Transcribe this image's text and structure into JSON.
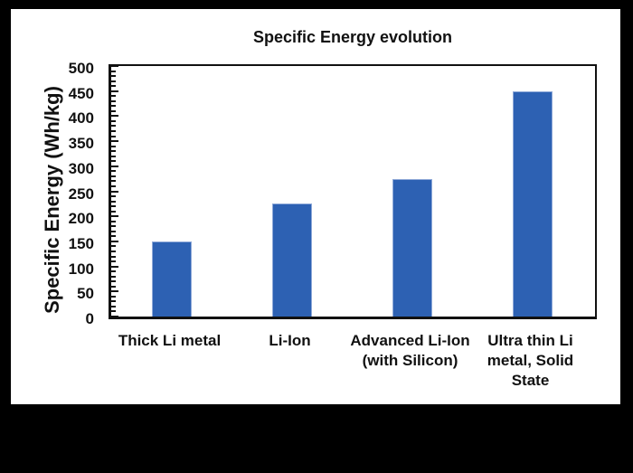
{
  "chart_data": {
    "type": "bar",
    "title": "Specific Energy evolution",
    "ylabel": "Specific Energy (Wh/kg)",
    "xlabel": "",
    "categories": [
      "Thick Li metal",
      "Li-Ion",
      "Advanced Li-Ion\n(with Silicon)",
      "Ultra thin Li\nmetal, Solid\nState"
    ],
    "values": [
      150,
      225,
      275,
      450
    ],
    "ylim": [
      0,
      500
    ],
    "ytick_step": 50,
    "minor_tick_step": 10,
    "grid": false,
    "legend_position": "none",
    "bar_color": "#2d61b3"
  },
  "colors": {
    "background": "#000000",
    "panel": "#ffffff",
    "bar": "#2d61b3",
    "bar_edge": "#8fa9d8",
    "axis": "#111111",
    "text": "#111111"
  }
}
